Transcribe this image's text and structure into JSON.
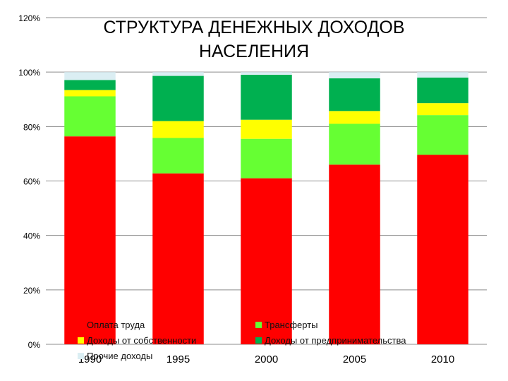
{
  "chart_data": {
    "type": "bar",
    "stacked": true,
    "title": "СТРУКТУРА ДЕНЕЖНЫХ ДОХОДОВ НАСЕЛЕНИЯ",
    "title_lines": [
      "СТРУКТУРА ДЕНЕЖНЫХ ДОХОДОВ",
      "НАСЕЛЕНИЯ"
    ],
    "categories": [
      "1990",
      "1995",
      "2000",
      "2005",
      "2010"
    ],
    "ylim": [
      0,
      120
    ],
    "yticks": [
      0,
      20,
      40,
      60,
      80,
      100,
      120
    ],
    "ytick_labels": [
      "0%",
      "20%",
      "40%",
      "60%",
      "80%",
      "100%",
      "120%"
    ],
    "grid": true,
    "legend_position": "bottom, overlapping plot area",
    "series": [
      {
        "name": "Оплата труда",
        "color": "#ff0000",
        "values": [
          76.4,
          62.8,
          61.0,
          66.0,
          69.6
        ]
      },
      {
        "name": "Трансферты",
        "color": "#66ff33",
        "values": [
          14.7,
          13.0,
          14.5,
          15.0,
          14.6
        ]
      },
      {
        "name": "Доходы от собственности",
        "color": "#ffff00",
        "values": [
          2.3,
          6.2,
          7.0,
          4.7,
          4.4
        ]
      },
      {
        "name": "Доходы от предпринимательства",
        "color": "#00b050",
        "values": [
          3.7,
          16.6,
          16.5,
          12.0,
          9.4
        ]
      },
      {
        "name": "Прочие доходы",
        "color": "#dbeef3",
        "values": [
          2.9,
          1.4,
          1.0,
          2.3,
          2.0
        ]
      }
    ]
  }
}
